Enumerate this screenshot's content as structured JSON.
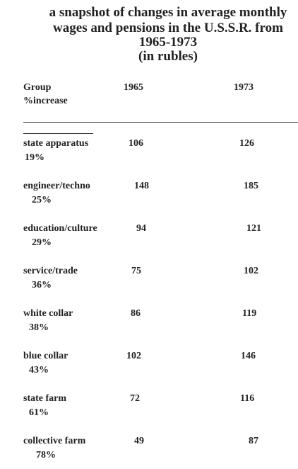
{
  "title": {
    "lines": [
      "a snapshot of changes in average monthly",
      "wages and pensions in the U.S.S.R. from",
      "1965-1973",
      "(in rubles)"
    ]
  },
  "table": {
    "header": [
      "Group",
      "1965",
      "1973",
      "%increase"
    ],
    "rows": [
      [
        "state apparatus",
        "106",
        "126",
        "19%"
      ],
      [
        "engineer/techno",
        "148",
        "185",
        "25%"
      ],
      [
        "education/culture",
        "94",
        "121",
        "29%"
      ],
      [
        "service/trade",
        "75",
        "102",
        "36%"
      ],
      [
        "white collar",
        "86",
        "119",
        "38%"
      ],
      [
        "blue collar",
        "102",
        "146",
        "43%"
      ],
      [
        "state farm",
        "72",
        "116",
        "61%"
      ],
      [
        "collective farm",
        "49",
        "87",
        "78%"
      ]
    ]
  }
}
